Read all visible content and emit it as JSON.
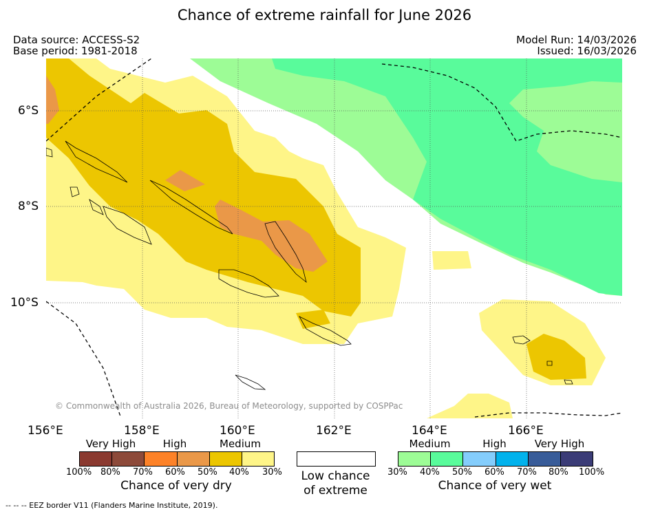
{
  "title": "Chance of extreme rainfall for June 2026",
  "meta": {
    "data_source": "Data source: ACCESS-S2",
    "base_period": "Base period: 1981-2018",
    "model_run": "Model Run: 14/03/2026",
    "issued": "Issued: 16/03/2026"
  },
  "map": {
    "lat_labels": [
      "6°S",
      "8°S",
      "10°S"
    ],
    "lon_labels": [
      "156°E",
      "158°E",
      "160°E",
      "162°E",
      "164°E",
      "166°E"
    ],
    "copyright": "© Commonwealth of Australia 2026, Bureau of Meteorology, supported by COSPPac"
  },
  "legend": {
    "dry": {
      "groups": [
        "Very High",
        "High",
        "Medium"
      ],
      "ticks": [
        "100%",
        "80%",
        "70%",
        "60%",
        "50%",
        "40%",
        "30%"
      ],
      "colors": [
        "#8b3a30",
        "#8d4a3a",
        "#fd8228",
        "#ea9848",
        "#ecc601",
        "#fef588"
      ],
      "title": "Chance of very dry"
    },
    "low": {
      "line1": "Low chance",
      "line2": "of extreme"
    },
    "wet": {
      "groups": [
        "Medium",
        "High",
        "Very High"
      ],
      "ticks": [
        "30%",
        "40%",
        "50%",
        "60%",
        "70%",
        "80%",
        "100%"
      ],
      "colors": [
        "#9dfc96",
        "#59fb9b",
        "#84cdfc",
        "#02b2ec",
        "#385c99",
        "#3b3c77"
      ],
      "title": "Chance of very wet"
    },
    "eez_note": "--  --  -- EEZ border V11 (Flanders Marine Institute, 2019)."
  }
}
